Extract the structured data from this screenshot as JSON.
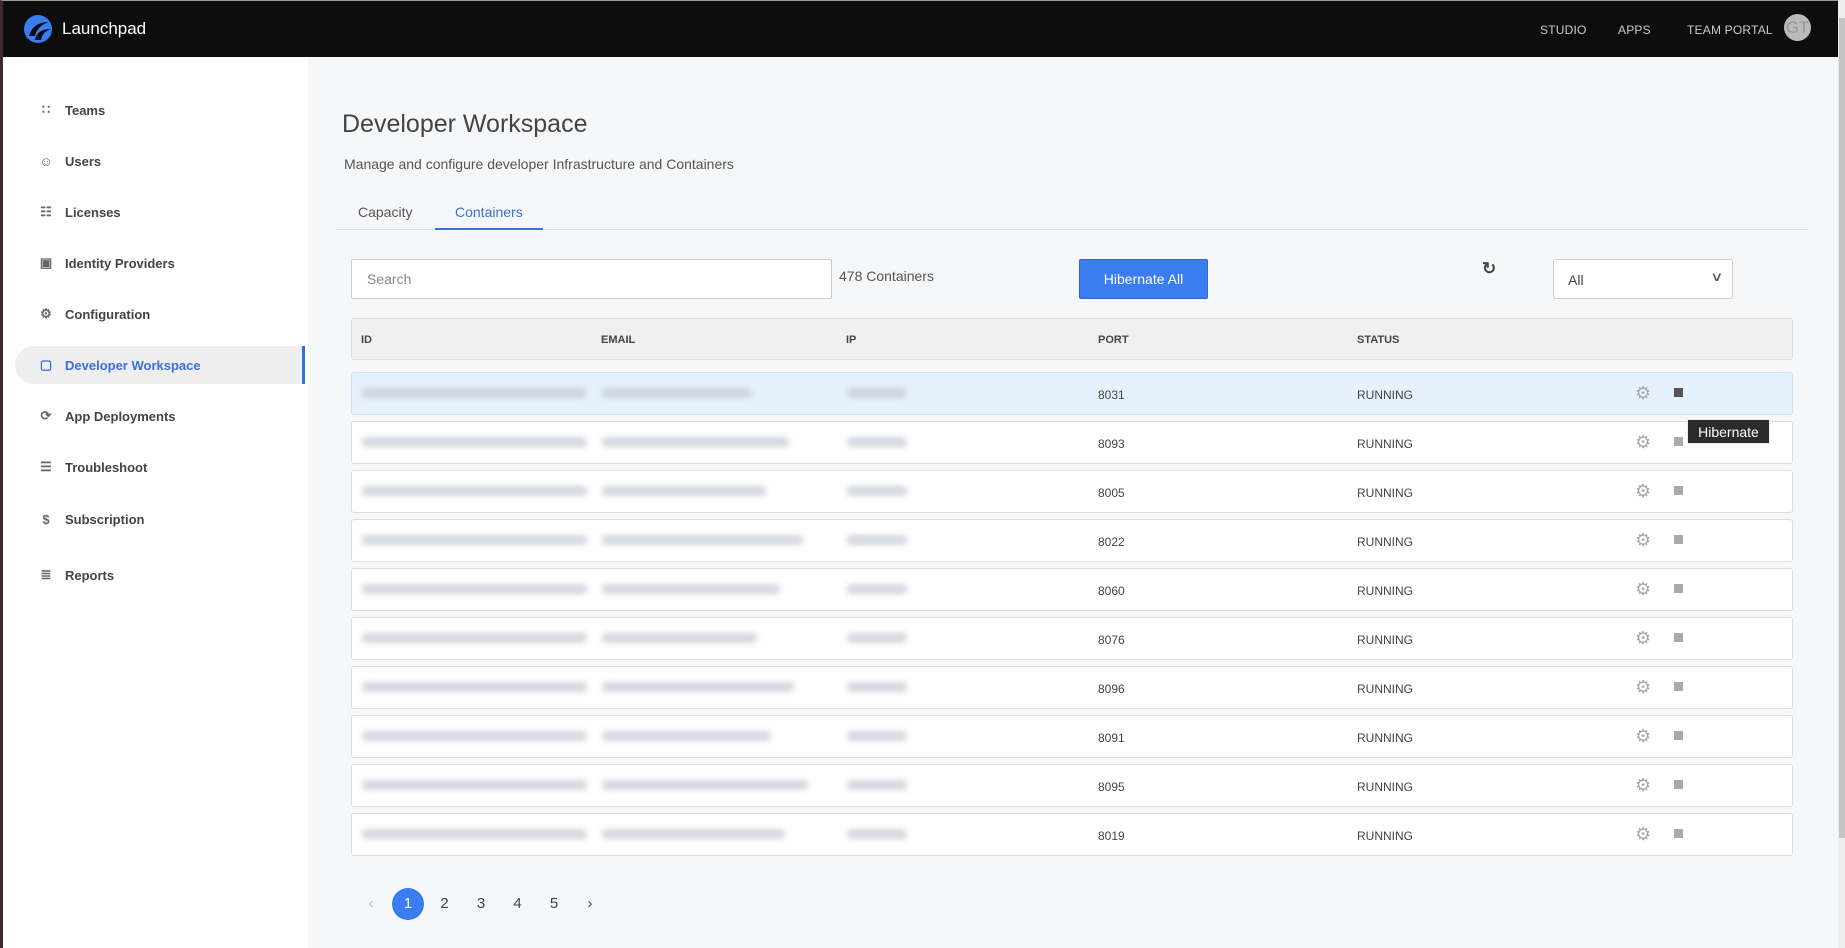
{
  "header": {
    "brand": "Launchpad",
    "nav": [
      "STUDIO",
      "APPS",
      "TEAM PORTAL"
    ],
    "avatar_initials": "GT"
  },
  "sidebar": {
    "items": [
      {
        "label": "Teams",
        "icon": "teams-icon"
      },
      {
        "label": "Users",
        "icon": "users-icon"
      },
      {
        "label": "Licenses",
        "icon": "license-icon"
      },
      {
        "label": "Identity Providers",
        "icon": "id-card-icon"
      },
      {
        "label": "Configuration",
        "icon": "config-gear-icon"
      },
      {
        "label": "Developer Workspace",
        "icon": "workspace-icon",
        "active": true
      },
      {
        "label": "App Deployments",
        "icon": "deploy-icon"
      },
      {
        "label": "Troubleshoot",
        "icon": "troubleshoot-icon"
      },
      {
        "label": "Subscription",
        "icon": "dollar-icon"
      },
      {
        "label": "Reports",
        "icon": "document-icon"
      }
    ]
  },
  "page": {
    "title": "Developer Workspace",
    "subtitle": "Manage and configure developer Infrastructure and Containers",
    "tabs": [
      {
        "label": "Capacity"
      },
      {
        "label": "Containers",
        "active": true
      }
    ]
  },
  "toolbar": {
    "search_placeholder": "Search",
    "count": "478 Containers",
    "hibernate_all": "Hibernate All",
    "filter_value": "All"
  },
  "table": {
    "columns": [
      "ID",
      "EMAIL",
      "IP",
      "PORT",
      "STATUS"
    ],
    "rows": [
      {
        "port": "8031",
        "status": "RUNNING"
      },
      {
        "port": "8093",
        "status": "RUNNING"
      },
      {
        "port": "8005",
        "status": "RUNNING"
      },
      {
        "port": "8022",
        "status": "RUNNING"
      },
      {
        "port": "8060",
        "status": "RUNNING"
      },
      {
        "port": "8076",
        "status": "RUNNING"
      },
      {
        "port": "8096",
        "status": "RUNNING"
      },
      {
        "port": "8091",
        "status": "RUNNING"
      },
      {
        "port": "8095",
        "status": "RUNNING"
      },
      {
        "port": "8019",
        "status": "RUNNING"
      }
    ]
  },
  "tooltip": "Hibernate",
  "pagination": {
    "pages": [
      "1",
      "2",
      "3",
      "4",
      "5"
    ],
    "current": "1",
    "prev": "‹",
    "next": "›"
  },
  "colors": {
    "accent": "#3b7cf0",
    "topbar": "#0d0d0d",
    "row_highlight": "#e5f1fd"
  }
}
